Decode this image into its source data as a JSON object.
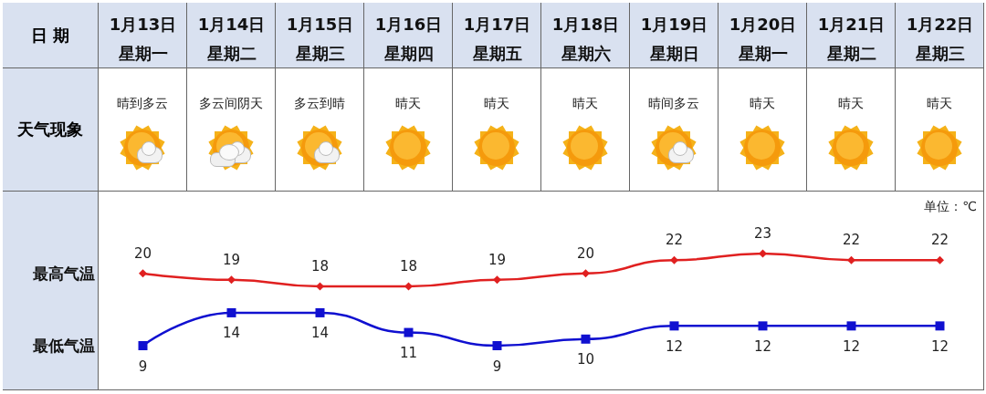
{
  "chart_data": {
    "type": "line",
    "categories": [
      "1月13日星期一",
      "1月14日星期二",
      "1月15日星期三",
      "1月16日星期四",
      "1月17日星期五",
      "1月18日星期六",
      "1月19日星期日",
      "1月20日星期一",
      "1月21日星期二",
      "1月22日星期三"
    ],
    "series": [
      {
        "name": "最高气温",
        "color": "#e02020",
        "marker": "diamond",
        "values": [
          20,
          19,
          18,
          18,
          19,
          20,
          22,
          23,
          22,
          22
        ]
      },
      {
        "name": "最低气温",
        "color": "#1010d0",
        "marker": "square",
        "values": [
          9,
          14,
          14,
          11,
          9,
          10,
          12,
          12,
          12,
          12
        ]
      }
    ],
    "data_labels": true,
    "annotations": [
      "日 期",
      "天气现象",
      "单位：℃",
      "晴到多云",
      "多云间阴天",
      "多云到晴",
      "晴天",
      "晴天",
      "晴天",
      "晴间多云",
      "晴天",
      "晴天",
      "晴天"
    ]
  }
}
